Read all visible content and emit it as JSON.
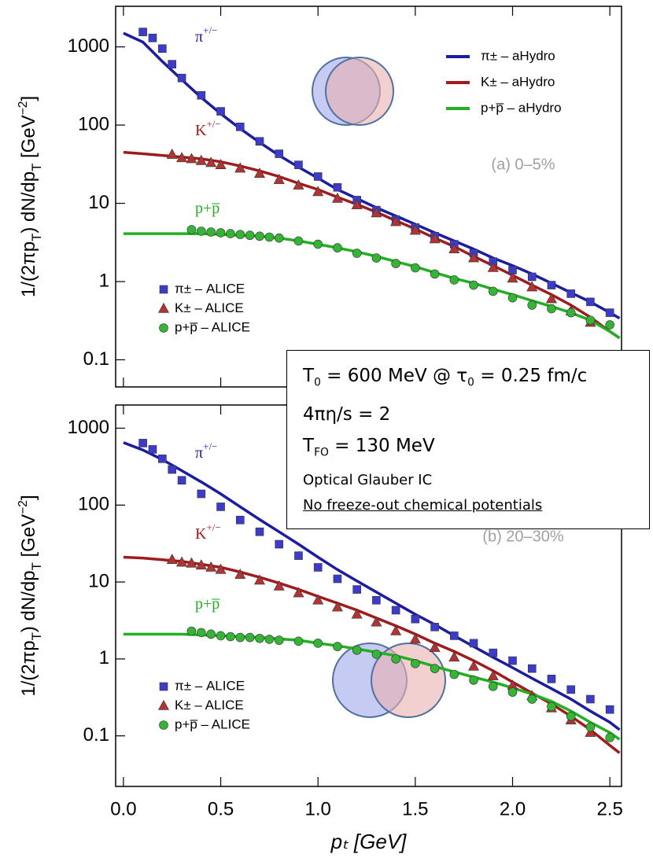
{
  "chart_data": [
    {
      "type": "line",
      "log_y": true,
      "ylabel": [
        "1/(2πp",
        "T",
        ") dN/dp",
        "T",
        " [GeV",
        "−2",
        "]"
      ],
      "xlim": [
        -0.04,
        2.56
      ],
      "xticks": [
        0,
        0.5,
        1,
        1.5,
        2,
        2.5
      ],
      "ylim": [
        0.045,
        3300
      ],
      "yticks": [
        0.1,
        1,
        10,
        100,
        1000
      ],
      "annotation": "(a) 0–5%",
      "curve_labels": [
        [
          "π",
          "+/−"
        ],
        [
          "K",
          "+/−"
        ],
        [
          "p+p̅"
        ]
      ],
      "series": [
        {
          "name": "π± – aHydro",
          "type": "line",
          "color": "#1c1ca0",
          "x": [
            0,
            0.1,
            0.2,
            0.3,
            0.4,
            0.5,
            0.6,
            0.7,
            0.8,
            0.9,
            1.0,
            1.1,
            1.2,
            1.3,
            1.4,
            1.5,
            1.6,
            1.7,
            1.8,
            1.9,
            2.0,
            2.1,
            2.2,
            2.3,
            2.4,
            2.5,
            2.55
          ],
          "values": [
            1500,
            1150,
            650,
            380,
            225,
            140,
            90,
            60,
            41,
            29,
            21,
            15,
            11.5,
            8.8,
            6.9,
            5.4,
            4.2,
            3.3,
            2.6,
            2.0,
            1.6,
            1.25,
            0.95,
            0.72,
            0.55,
            0.4,
            0.34
          ]
        },
        {
          "name": "K± – aHydro",
          "type": "line",
          "color": "#a01c1c",
          "x": [
            0,
            0.1,
            0.2,
            0.3,
            0.4,
            0.5,
            0.6,
            0.7,
            0.8,
            0.9,
            1.0,
            1.1,
            1.2,
            1.3,
            1.4,
            1.5,
            1.6,
            1.7,
            1.8,
            1.9,
            2.0,
            2.1,
            2.2,
            2.3,
            2.4,
            2.5,
            2.55
          ],
          "values": [
            45,
            43,
            41,
            39,
            37,
            34,
            30,
            26,
            22,
            18,
            15,
            12,
            9.7,
            7.7,
            6,
            4.7,
            3.6,
            2.8,
            2.1,
            1.6,
            1.2,
            0.9,
            0.68,
            0.5,
            0.35,
            0.23,
            0.19
          ]
        },
        {
          "name": "p+p̅ – aHydro",
          "type": "line",
          "color": "#22b022",
          "x": [
            0,
            0.1,
            0.2,
            0.3,
            0.4,
            0.5,
            0.6,
            0.7,
            0.8,
            0.9,
            1.0,
            1.1,
            1.2,
            1.3,
            1.4,
            1.5,
            1.6,
            1.7,
            1.8,
            1.9,
            2.0,
            2.1,
            2.2,
            2.3,
            2.4,
            2.5,
            2.55
          ],
          "values": [
            4.1,
            4.1,
            4.1,
            4.1,
            4.1,
            4.0,
            3.9,
            3.8,
            3.6,
            3.3,
            3.0,
            2.7,
            2.4,
            2.1,
            1.8,
            1.55,
            1.3,
            1.1,
            0.95,
            0.8,
            0.68,
            0.57,
            0.48,
            0.4,
            0.32,
            0.23,
            0.19
          ]
        },
        {
          "name": "π± – ALICE",
          "type": "scatter",
          "marker": "square",
          "color": "#3c3cc8",
          "x": [
            0.1,
            0.15,
            0.2,
            0.25,
            0.3,
            0.4,
            0.5,
            0.6,
            0.7,
            0.8,
            0.9,
            1.0,
            1.1,
            1.2,
            1.3,
            1.4,
            1.5,
            1.6,
            1.7,
            1.8,
            1.9,
            2.0,
            2.1,
            2.2,
            2.3,
            2.4,
            2.5
          ],
          "values": [
            1550,
            1300,
            950,
            600,
            400,
            240,
            150,
            95,
            62,
            43,
            31,
            22,
            16,
            11,
            8.2,
            6.2,
            4.9,
            3.8,
            3.0,
            2.3,
            1.8,
            1.4,
            1.15,
            0.9,
            0.7,
            0.55,
            0.4
          ]
        },
        {
          "name": "K± – ALICE",
          "type": "scatter",
          "marker": "triangle",
          "color": "#b03434",
          "x": [
            0.25,
            0.3,
            0.35,
            0.4,
            0.45,
            0.5,
            0.6,
            0.7,
            0.8,
            0.9,
            1.0,
            1.1,
            1.2,
            1.3,
            1.4,
            1.5,
            1.6,
            1.7,
            1.8,
            1.9,
            2.0,
            2.1,
            2.2,
            2.3,
            2.4
          ],
          "values": [
            42,
            38,
            37,
            35,
            33,
            31,
            28,
            24,
            20,
            17,
            14,
            11.5,
            9.5,
            7.5,
            5.8,
            4.5,
            3.5,
            2.6,
            2.0,
            1.5,
            1.1,
            0.85,
            0.6,
            0.42,
            0.3
          ]
        },
        {
          "name": "p+p̅ – ALICE",
          "type": "scatter",
          "marker": "circle",
          "color": "#36b436",
          "x": [
            0.35,
            0.4,
            0.45,
            0.5,
            0.55,
            0.6,
            0.65,
            0.7,
            0.75,
            0.8,
            0.9,
            1.0,
            1.1,
            1.2,
            1.3,
            1.4,
            1.5,
            1.6,
            1.7,
            1.8,
            1.9,
            2.0,
            2.1,
            2.2,
            2.3,
            2.4,
            2.5
          ],
          "values": [
            4.6,
            4.4,
            4.3,
            4.2,
            4.1,
            4.0,
            3.9,
            3.8,
            3.7,
            3.6,
            3.3,
            3.0,
            2.7,
            2.3,
            2.0,
            1.7,
            1.5,
            1.25,
            1.05,
            0.9,
            0.75,
            0.62,
            0.5,
            0.45,
            0.4,
            0.32,
            0.28
          ]
        }
      ]
    },
    {
      "type": "line",
      "log_y": true,
      "xlabel": "pₜ [GeV]",
      "ylabel": [
        "1/(2πp",
        "T",
        ") dN/dp",
        "T",
        " [GeV",
        "−2",
        "]"
      ],
      "xlim": [
        -0.04,
        2.56
      ],
      "xticks": [
        {
          "value": 0,
          "label": "0.0"
        },
        {
          "value": 0.5,
          "label": "0.5"
        },
        {
          "value": 1,
          "label": "1.0"
        },
        {
          "value": 1.5,
          "label": "1.5"
        },
        {
          "value": 2,
          "label": "2.0"
        },
        {
          "value": 2.5,
          "label": "2.5"
        }
      ],
      "ylim": [
        0.022,
        2000
      ],
      "yticks": [
        0.1,
        1,
        10,
        100,
        1000
      ],
      "annotation": "(b) 20–30%",
      "curve_labels": [
        [
          "π",
          "+/−"
        ],
        [
          "K",
          "+/−"
        ],
        [
          "p+p̅"
        ]
      ],
      "series": [
        {
          "type": "line",
          "color": "#1c1ca0",
          "x": [
            0,
            0.1,
            0.2,
            0.3,
            0.4,
            0.5,
            0.6,
            0.7,
            0.8,
            0.9,
            1.0,
            1.1,
            1.2,
            1.3,
            1.4,
            1.5,
            1.6,
            1.7,
            1.8,
            1.9,
            2.0,
            2.1,
            2.2,
            2.3,
            2.4,
            2.5,
            2.55
          ],
          "values": [
            650,
            520,
            390,
            280,
            200,
            140,
            95,
            65,
            45,
            31,
            21,
            14.5,
            10.3,
            7.4,
            5.3,
            3.8,
            2.8,
            2.0,
            1.45,
            1.05,
            0.77,
            0.56,
            0.41,
            0.3,
            0.21,
            0.15,
            0.12
          ]
        },
        {
          "type": "line",
          "color": "#a01c1c",
          "x": [
            0,
            0.1,
            0.2,
            0.3,
            0.4,
            0.5,
            0.6,
            0.7,
            0.8,
            0.9,
            1.0,
            1.1,
            1.2,
            1.3,
            1.4,
            1.5,
            1.6,
            1.7,
            1.8,
            1.9,
            2.0,
            2.1,
            2.2,
            2.3,
            2.4,
            2.5,
            2.55
          ],
          "values": [
            21,
            20.5,
            19.5,
            18.5,
            17,
            15.5,
            13.5,
            11.5,
            9.7,
            8,
            6.5,
            5.3,
            4.3,
            3.4,
            2.7,
            2.1,
            1.6,
            1.25,
            0.95,
            0.7,
            0.5,
            0.36,
            0.26,
            0.18,
            0.12,
            0.075,
            0.06
          ]
        },
        {
          "type": "line",
          "color": "#22b022",
          "x": [
            0,
            0.1,
            0.2,
            0.3,
            0.4,
            0.5,
            0.6,
            0.7,
            0.8,
            0.9,
            1.0,
            1.1,
            1.2,
            1.3,
            1.4,
            1.5,
            1.6,
            1.7,
            1.8,
            1.9,
            2.0,
            2.1,
            2.2,
            2.3,
            2.4,
            2.5,
            2.55
          ],
          "values": [
            2.1,
            2.1,
            2.1,
            2.1,
            2.05,
            2.0,
            1.95,
            1.9,
            1.82,
            1.75,
            1.6,
            1.48,
            1.35,
            1.22,
            1.1,
            0.95,
            0.8,
            0.68,
            0.58,
            0.5,
            0.42,
            0.35,
            0.28,
            0.21,
            0.15,
            0.11,
            0.09
          ]
        },
        {
          "name": "π± – ALICE",
          "type": "scatter",
          "marker": "square",
          "color": "#3c3cc8",
          "x": [
            0.1,
            0.15,
            0.2,
            0.25,
            0.3,
            0.4,
            0.5,
            0.6,
            0.7,
            0.8,
            0.9,
            1.0,
            1.1,
            1.2,
            1.3,
            1.4,
            1.5,
            1.6,
            1.7,
            1.8,
            1.9,
            2.0,
            2.1,
            2.2,
            2.3,
            2.4,
            2.5
          ],
          "values": [
            640,
            530,
            400,
            290,
            210,
            140,
            95,
            64,
            45,
            31,
            22,
            15.5,
            11,
            8,
            5.8,
            4.3,
            3.3,
            2.6,
            2.0,
            1.6,
            1.2,
            0.95,
            0.75,
            0.55,
            0.4,
            0.3,
            0.22
          ]
        },
        {
          "name": "K± – ALICE",
          "type": "scatter",
          "marker": "triangle",
          "color": "#b03434",
          "x": [
            0.25,
            0.3,
            0.35,
            0.4,
            0.45,
            0.5,
            0.6,
            0.7,
            0.8,
            0.9,
            1.0,
            1.1,
            1.2,
            1.3,
            1.4,
            1.5,
            1.6,
            1.7,
            1.8,
            1.9,
            2.0,
            2.1,
            2.2,
            2.3,
            2.4
          ],
          "values": [
            19.5,
            18,
            17.5,
            16.5,
            15.5,
            14.5,
            12.5,
            10.5,
            8.8,
            7.2,
            5.8,
            4.7,
            3.8,
            3.0,
            2.3,
            1.8,
            1.4,
            1.05,
            0.8,
            0.6,
            0.45,
            0.33,
            0.23,
            0.16,
            0.11
          ]
        },
        {
          "name": "p+p̅ – ALICE",
          "type": "scatter",
          "marker": "circle",
          "color": "#36b436",
          "x": [
            0.35,
            0.4,
            0.45,
            0.5,
            0.55,
            0.6,
            0.65,
            0.7,
            0.75,
            0.8,
            0.9,
            1.0,
            1.1,
            1.2,
            1.3,
            1.4,
            1.5,
            1.6,
            1.7,
            1.8,
            1.9,
            2.0,
            2.1,
            2.2,
            2.3,
            2.4,
            2.5
          ],
          "values": [
            2.3,
            2.2,
            2.1,
            2.0,
            1.95,
            1.9,
            1.9,
            1.85,
            1.8,
            1.75,
            1.7,
            1.6,
            1.45,
            1.3,
            1.15,
            1.0,
            0.87,
            0.75,
            0.63,
            0.53,
            0.44,
            0.37,
            0.3,
            0.24,
            0.18,
            0.13,
            0.095
          ]
        }
      ]
    }
  ],
  "info_box": {
    "lines": [
      [
        "T",
        "0",
        " = 600 MeV @ τ",
        "0",
        " = 0.25 fm/c"
      ],
      [
        "4πη/s = 2"
      ],
      [
        "T",
        "FO",
        " = 130 MeV"
      ],
      [
        "Optical Glauber IC"
      ],
      [
        "No freeze-out chemical potentials"
      ]
    ]
  }
}
